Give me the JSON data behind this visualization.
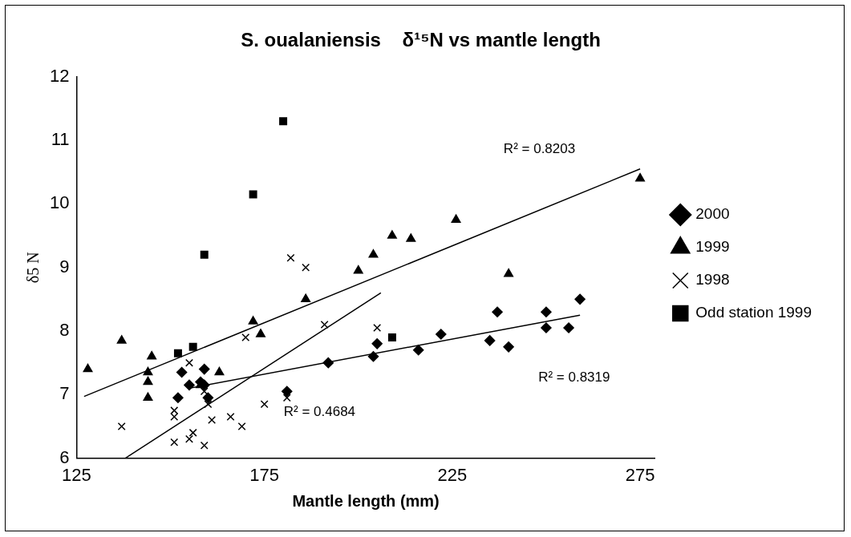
{
  "chart_data": {
    "type": "scatter",
    "title": "S. oualaniensis    δ¹⁵N vs mantle length",
    "xlabel": "Mantle length (mm)",
    "ylabel": "δ5 N",
    "xlim": [
      125,
      279
    ],
    "xticks": [
      125,
      175,
      225,
      275
    ],
    "ylim": [
      6,
      12
    ],
    "yticks": [
      6,
      7,
      8,
      9,
      10,
      11,
      12
    ],
    "grid": false,
    "legend": "right",
    "series": [
      {
        "name": "2000",
        "color": "#000000",
        "marker": "diamond",
        "x": [
          152,
          153,
          155,
          158,
          159,
          159,
          160,
          181,
          192,
          204,
          205,
          216,
          222,
          235,
          237,
          240,
          250,
          250,
          256,
          259
        ],
        "values": [
          6.95,
          7.35,
          7.15,
          7.2,
          7.4,
          7.15,
          6.95,
          7.05,
          7.5,
          7.6,
          7.8,
          7.7,
          7.95,
          7.85,
          8.3,
          7.75,
          8.3,
          8.05,
          8.05,
          8.5
        ]
      },
      {
        "name": "1999",
        "color": "#000000",
        "marker": "triangle",
        "x": [
          128,
          137,
          144,
          144,
          144,
          145,
          158,
          163,
          172,
          174,
          186,
          200,
          204,
          209,
          214,
          226,
          240,
          275
        ],
        "values": [
          7.4,
          7.85,
          7.35,
          7.2,
          6.95,
          7.6,
          7.15,
          7.35,
          8.15,
          7.95,
          8.5,
          8.95,
          9.2,
          9.5,
          9.45,
          9.75,
          8.9,
          10.4
        ]
      },
      {
        "name": "1998",
        "color": "#000000",
        "marker": "cross",
        "x": [
          137,
          151,
          151,
          151,
          155,
          155,
          156,
          159,
          159,
          160,
          161,
          166,
          169,
          170,
          175,
          181,
          182,
          186,
          191,
          205
        ],
        "values": [
          6.5,
          6.75,
          6.65,
          6.25,
          7.5,
          6.3,
          6.4,
          7.05,
          6.2,
          6.85,
          6.6,
          6.65,
          6.5,
          7.9,
          6.85,
          6.95,
          9.15,
          9.0,
          8.1,
          8.05
        ]
      },
      {
        "name": "Odd station 1999",
        "color": "#000000",
        "marker": "square",
        "x": [
          152,
          156,
          159,
          172,
          180,
          209
        ],
        "values": [
          7.65,
          7.75,
          9.2,
          10.15,
          11.3,
          7.9
        ]
      },
      {
        "type": "line",
        "color": "#000000",
        "marker": "none",
        "x": [
          127,
          275
        ],
        "values": [
          6.97,
          10.55
        ]
      },
      {
        "type": "line",
        "color": "#000000",
        "marker": "none",
        "x": [
          155,
          259
        ],
        "values": [
          7.1,
          8.25
        ]
      },
      {
        "type": "line",
        "color": "#000000",
        "marker": "none",
        "x": [
          138,
          206
        ],
        "values": [
          6,
          8.6
        ]
      }
    ],
    "annotations": [
      "R² = 0.8203",
      "R² = 0.8319",
      "R² = 0.4684"
    ]
  }
}
